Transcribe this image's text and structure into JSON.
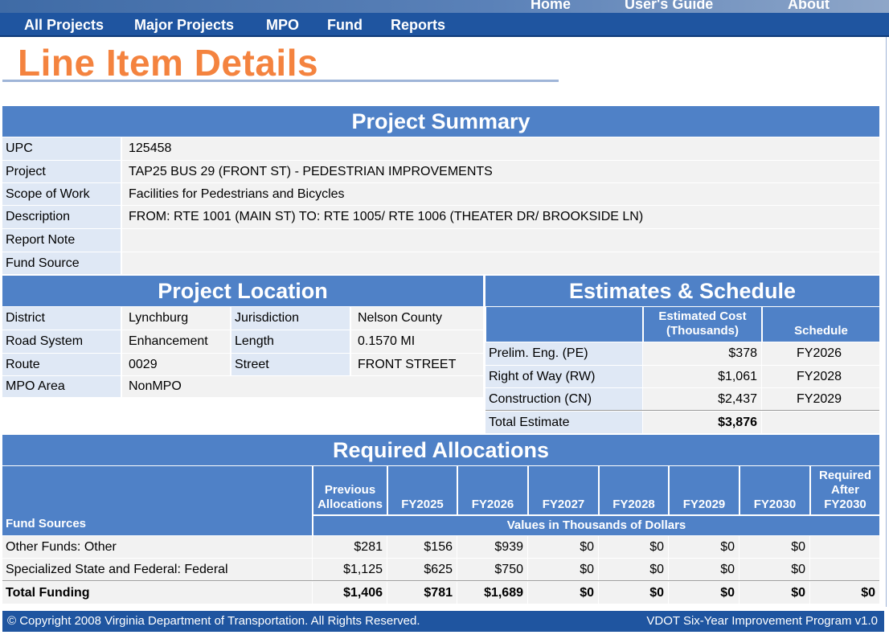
{
  "top_links": [
    "Home",
    "User's Guide",
    "About"
  ],
  "nav": [
    "All Projects",
    "Major Projects",
    "MPO",
    "Fund",
    "Reports"
  ],
  "page_title": "Line Item Details",
  "summary": {
    "header": "Project Summary",
    "rows": [
      {
        "label": "UPC",
        "value": "125458"
      },
      {
        "label": "Project",
        "value": "TAP25 BUS 29 (FRONT ST) - PEDESTRIAN IMPROVEMENTS"
      },
      {
        "label": "Scope of Work",
        "value": "Facilities for Pedestrians and Bicycles"
      },
      {
        "label": "Description",
        "value": "FROM: RTE 1001 (MAIN ST) TO: RTE 1005/ RTE 1006 (THEATER DR/ BROOKSIDE LN)"
      },
      {
        "label": "Report Note",
        "value": ""
      },
      {
        "label": "Fund Source",
        "value": ""
      }
    ]
  },
  "location": {
    "header": "Project Location",
    "district_label": "District",
    "district": "Lynchburg",
    "jurisdiction_label": "Jurisdiction",
    "jurisdiction": "Nelson County",
    "road_system_label": "Road System",
    "road_system": "Enhancement",
    "length_label": "Length",
    "length": "0.1570 MI",
    "route_label": "Route",
    "route": "0029",
    "street_label": "Street",
    "street": "FRONT STREET",
    "mpo_area_label": "MPO Area",
    "mpo_area": "NonMPO"
  },
  "estimates": {
    "header": "Estimates & Schedule",
    "cost_header": "Estimated Cost (Thousands)",
    "schedule_header": "Schedule",
    "rows": [
      {
        "phase": "Prelim. Eng. (PE)",
        "cost": "$378",
        "schedule": "FY2026"
      },
      {
        "phase": "Right of Way (RW)",
        "cost": "$1,061",
        "schedule": "FY2028"
      },
      {
        "phase": "Construction (CN)",
        "cost": "$2,437",
        "schedule": "FY2029"
      }
    ],
    "total_label": "Total Estimate",
    "total_cost": "$3,876"
  },
  "allocations": {
    "header": "Required Allocations",
    "fund_sources_label": "Fund Sources",
    "columns": [
      "Previous Allocations",
      "FY2025",
      "FY2026",
      "FY2027",
      "FY2028",
      "FY2029",
      "FY2030",
      "Required After FY2030"
    ],
    "units_note": "Values in Thousands of Dollars",
    "rows": [
      {
        "source": "Other Funds: Other",
        "values": [
          "$281",
          "$156",
          "$939",
          "$0",
          "$0",
          "$0",
          "$0",
          ""
        ]
      },
      {
        "source": "Specialized State and Federal: Federal",
        "values": [
          "$1,125",
          "$625",
          "$750",
          "$0",
          "$0",
          "$0",
          "$0",
          ""
        ]
      }
    ],
    "total": {
      "source": "Total Funding",
      "values": [
        "$1,406",
        "$781",
        "$1,689",
        "$0",
        "$0",
        "$0",
        "$0",
        "$0"
      ]
    }
  },
  "footer": {
    "copyright": "© Copyright 2008 Virginia Department of Transportation. All Rights Reserved.",
    "version": "VDOT Six-Year Improvement Program v1.0"
  },
  "colors": {
    "nav_bar": "#1f55a0",
    "section_header": "#4f81c7",
    "title_orange": "#f4833f",
    "label_cell": "#dfe8f5",
    "value_cell": "#f2f2f2"
  }
}
